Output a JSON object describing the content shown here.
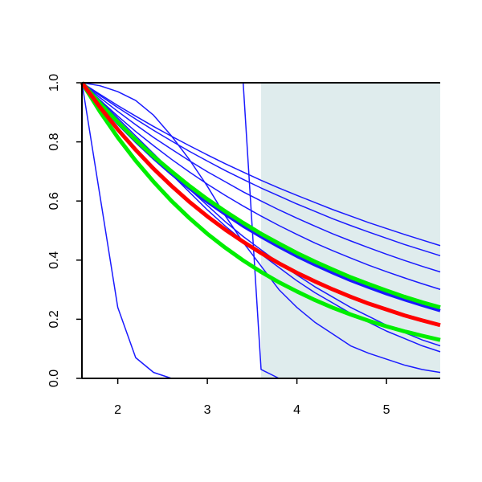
{
  "chart_data": {
    "type": "line",
    "x": [
      1.6,
      1.8,
      2.0,
      2.2,
      2.4,
      2.6,
      2.8,
      3.0,
      3.2,
      3.4,
      3.6,
      3.8,
      4.0,
      4.2,
      4.4,
      4.6,
      4.8,
      5.0,
      5.2,
      5.4,
      5.6
    ],
    "xlim": [
      1.6,
      5.6
    ],
    "xticks": [
      2,
      3,
      4,
      5
    ],
    "ylim": [
      0,
      1
    ],
    "yticks": [
      {
        "value": 0,
        "label": "0.0"
      },
      {
        "value": 0.2,
        "label": "0.2"
      },
      {
        "value": 0.4,
        "label": "0.4"
      },
      {
        "value": 0.6,
        "label": "0.6"
      },
      {
        "value": 0.8,
        "label": "0.8"
      },
      {
        "value": 1,
        "label": "1.0"
      }
    ],
    "shaded_region": {
      "x": [
        3.6,
        5.6
      ],
      "color": "#dfeced"
    },
    "series": [
      {
        "color": "#1a1aff",
        "width": 1.5,
        "values": [
          1,
          0.961,
          0.923,
          0.887,
          0.852,
          0.819,
          0.787,
          0.756,
          0.726,
          0.698,
          0.67,
          0.644,
          0.619,
          0.595,
          0.571,
          0.549,
          0.527,
          0.507,
          0.487,
          0.468,
          0.449
        ]
      },
      {
        "color": "#1a1aff",
        "width": 1.5,
        "values": [
          1,
          0.957,
          0.916,
          0.877,
          0.839,
          0.803,
          0.768,
          0.735,
          0.703,
          0.673,
          0.644,
          0.617,
          0.59,
          0.565,
          0.54,
          0.517,
          0.495,
          0.474,
          0.453,
          0.434,
          0.415
        ]
      },
      {
        "color": "#1a1aff",
        "width": 1.5,
        "values": [
          1,
          0.95,
          0.903,
          0.858,
          0.815,
          0.775,
          0.736,
          0.699,
          0.665,
          0.631,
          0.6,
          0.57,
          0.542,
          0.515,
          0.489,
          0.465,
          0.442,
          0.42,
          0.399,
          0.379,
          0.36
        ]
      },
      {
        "color": "#1a1aff",
        "width": 1.5,
        "values": [
          1,
          0.942,
          0.887,
          0.835,
          0.787,
          0.741,
          0.698,
          0.657,
          0.619,
          0.583,
          0.549,
          0.517,
          0.487,
          0.458,
          0.432,
          0.407,
          0.383,
          0.361,
          0.34,
          0.32,
          0.301
        ]
      },
      {
        "color": "#1a1aff",
        "width": 1.5,
        "values": [
          1,
          0.94,
          0.88,
          0.82,
          0.76,
          0.7,
          0.64,
          0.585,
          0.53,
          0.48,
          0.435,
          0.39,
          0.35,
          0.31,
          0.275,
          0.24,
          0.21,
          0.18,
          0.155,
          0.13,
          0.11
        ]
      },
      {
        "color": "#1a1aff",
        "width": 1.5,
        "values": [
          1,
          0.935,
          0.87,
          0.81,
          0.75,
          0.69,
          0.63,
          0.57,
          0.515,
          0.465,
          0.42,
          0.375,
          0.33,
          0.29,
          0.255,
          0.22,
          0.19,
          0.16,
          0.135,
          0.11,
          0.09
        ]
      },
      {
        "color": "#1a1aff",
        "width": 1.5,
        "values": [
          1,
          0.99,
          0.97,
          0.94,
          0.89,
          0.82,
          0.74,
          0.65,
          0.55,
          0.46,
          0.38,
          0.3,
          0.24,
          0.19,
          0.15,
          0.11,
          0.085,
          0.065,
          0.045,
          0.03,
          0.02
        ]
      },
      {
        "color": "#1a1aff",
        "width": 1.5,
        "values": [
          1,
          1,
          1,
          1,
          1,
          1,
          1,
          1,
          1,
          1,
          0.03,
          0,
          0,
          0,
          0,
          0,
          0,
          0,
          0,
          0,
          0
        ]
      },
      {
        "color": "#1a1aff",
        "width": 1.5,
        "values": [
          1,
          0.62,
          0.24,
          0.07,
          0.02,
          0,
          0,
          0,
          0,
          0,
          0,
          0,
          0,
          0,
          0,
          0,
          0,
          0,
          0,
          0,
          0
        ]
      },
      {
        "color": "#1a1aff",
        "width": 4,
        "values": [
          1,
          0.929,
          0.863,
          0.802,
          0.745,
          0.692,
          0.643,
          0.597,
          0.555,
          0.515,
          0.479,
          0.445,
          0.413,
          0.384,
          0.357,
          0.331,
          0.308,
          0.286,
          0.266,
          0.247,
          0.229
        ]
      },
      {
        "color": "#00ee00",
        "width": 5,
        "values": [
          1,
          0.931,
          0.867,
          0.807,
          0.751,
          0.7,
          0.651,
          0.606,
          0.565,
          0.526,
          0.489,
          0.456,
          0.424,
          0.395,
          0.368,
          0.342,
          0.319,
          0.297,
          0.276,
          0.257,
          0.24
        ]
      },
      {
        "color": "#00ee00",
        "width": 5,
        "values": [
          1,
          0.903,
          0.815,
          0.736,
          0.665,
          0.6,
          0.542,
          0.489,
          0.442,
          0.399,
          0.36,
          0.325,
          0.294,
          0.265,
          0.239,
          0.216,
          0.195,
          0.176,
          0.159,
          0.144,
          0.13
        ]
      },
      {
        "color": "#ff0000",
        "width": 5,
        "values": [
          1,
          0.918,
          0.842,
          0.773,
          0.709,
          0.651,
          0.597,
          0.548,
          0.503,
          0.462,
          0.424,
          0.389,
          0.357,
          0.328,
          0.301,
          0.276,
          0.253,
          0.233,
          0.213,
          0.196,
          0.18
        ]
      }
    ]
  }
}
